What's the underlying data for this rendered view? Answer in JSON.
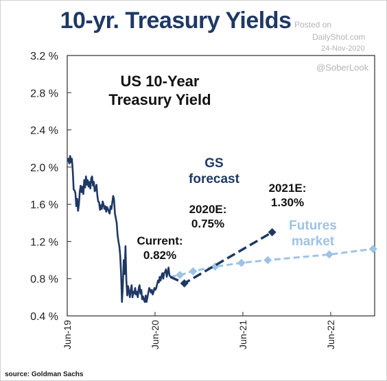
{
  "page": {
    "headline": "10-yr. Treasury Yields",
    "watermark": {
      "posted": "Posted on",
      "site": "DailyShot.com",
      "date": "24-Nov-2020",
      "handle": "@SoberLook"
    },
    "source": "source: Goldman Sachs"
  },
  "chart_data": {
    "type": "line",
    "title": "US 10-Year Treasury Yield",
    "xlabel": "",
    "ylabel": "",
    "ylim": [
      0.4,
      3.2
    ],
    "y_ticks": [
      3.2,
      2.8,
      2.4,
      2.0,
      1.6,
      1.2,
      0.8,
      0.4
    ],
    "y_tick_labels": [
      "3.2 %",
      "2.8 %",
      "2.4 %",
      "2.0 %",
      "1.6 %",
      "1.2 %",
      "0.8 %",
      "0.4 %"
    ],
    "x_ticks": [
      "Jun-19",
      "Jun-20",
      "Jun-21",
      "Jun-22"
    ],
    "xlim_years": [
      2019.417,
      2022.917
    ],
    "grid": false,
    "colors": {
      "history": "#1f3864",
      "gs": "#1f3864",
      "futures": "#9dc3e6",
      "text_dark": "#1f3864"
    },
    "series": [
      {
        "key": "history",
        "points": [
          [
            2019.42,
            2.06
          ],
          [
            2019.43,
            2.09
          ],
          [
            2019.44,
            2.04
          ],
          [
            2019.45,
            2.12
          ],
          [
            2019.46,
            2.05
          ],
          [
            2019.47,
            2.09
          ],
          [
            2019.48,
            1.96
          ],
          [
            2019.49,
            1.76
          ],
          [
            2019.5,
            1.75
          ],
          [
            2019.51,
            1.72
          ],
          [
            2019.52,
            1.58
          ],
          [
            2019.53,
            1.66
          ],
          [
            2019.54,
            1.53
          ],
          [
            2019.55,
            1.6
          ],
          [
            2019.56,
            1.74
          ],
          [
            2019.57,
            1.8
          ],
          [
            2019.58,
            1.73
          ],
          [
            2019.59,
            1.79
          ],
          [
            2019.6,
            1.71
          ],
          [
            2019.61,
            1.86
          ],
          [
            2019.62,
            1.78
          ],
          [
            2019.63,
            1.9
          ],
          [
            2019.64,
            1.81
          ],
          [
            2019.65,
            1.86
          ],
          [
            2019.66,
            1.79
          ],
          [
            2019.67,
            1.84
          ],
          [
            2019.68,
            1.77
          ],
          [
            2019.69,
            1.88
          ],
          [
            2019.7,
            1.9
          ],
          [
            2019.71,
            1.8
          ],
          [
            2019.72,
            1.84
          ],
          [
            2019.73,
            1.74
          ],
          [
            2019.74,
            1.76
          ],
          [
            2019.75,
            1.81
          ],
          [
            2019.76,
            1.69
          ],
          [
            2019.77,
            1.63
          ],
          [
            2019.78,
            1.62
          ],
          [
            2019.79,
            1.54
          ],
          [
            2019.8,
            1.59
          ],
          [
            2019.81,
            1.55
          ],
          [
            2019.82,
            1.63
          ],
          [
            2019.83,
            1.6
          ],
          [
            2019.84,
            1.55
          ],
          [
            2019.85,
            1.58
          ],
          [
            2019.86,
            1.52
          ],
          [
            2019.87,
            1.57
          ],
          [
            2019.88,
            1.55
          ],
          [
            2019.89,
            1.52
          ],
          [
            2019.9,
            1.5
          ],
          [
            2019.91,
            1.58
          ],
          [
            2019.92,
            1.55
          ],
          [
            2019.93,
            1.62
          ],
          [
            2019.94,
            1.69
          ],
          [
            2019.95,
            1.65
          ],
          [
            2019.96,
            1.5
          ],
          [
            2019.97,
            1.45
          ],
          [
            2019.98,
            1.4
          ],
          [
            2019.99,
            1.27
          ],
          [
            2020.0,
            1.2
          ],
          [
            2020.01,
            1.15
          ],
          [
            2020.02,
            1.05
          ],
          [
            2020.03,
            0.85
          ],
          [
            2020.04,
            0.55
          ],
          [
            2020.05,
            0.72
          ],
          [
            2020.06,
            1.0
          ],
          [
            2020.07,
            0.85
          ],
          [
            2020.08,
            1.15
          ],
          [
            2020.09,
            0.78
          ],
          [
            2020.1,
            0.62
          ],
          [
            2020.11,
            0.72
          ],
          [
            2020.12,
            0.66
          ],
          [
            2020.13,
            0.6
          ],
          [
            2020.14,
            0.68
          ],
          [
            2020.15,
            0.73
          ],
          [
            2020.16,
            0.6
          ],
          [
            2020.17,
            0.66
          ],
          [
            2020.18,
            0.64
          ],
          [
            2020.19,
            0.7
          ],
          [
            2020.2,
            0.63
          ],
          [
            2020.21,
            0.66
          ],
          [
            2020.22,
            0.6
          ],
          [
            2020.23,
            0.69
          ],
          [
            2020.24,
            0.73
          ],
          [
            2020.25,
            0.64
          ],
          [
            2020.26,
            0.68
          ],
          [
            2020.27,
            0.58
          ],
          [
            2020.28,
            0.61
          ],
          [
            2020.29,
            0.57
          ],
          [
            2020.3,
            0.55
          ],
          [
            2020.31,
            0.62
          ],
          [
            2020.32,
            0.55
          ],
          [
            2020.33,
            0.6
          ],
          [
            2020.34,
            0.65
          ],
          [
            2020.35,
            0.7
          ],
          [
            2020.36,
            0.68
          ],
          [
            2020.37,
            0.65
          ],
          [
            2020.38,
            0.68
          ],
          [
            2020.39,
            0.63
          ],
          [
            2020.4,
            0.66
          ],
          [
            2020.41,
            0.7
          ],
          [
            2020.42,
            0.68
          ],
          [
            2020.43,
            0.7
          ],
          [
            2020.44,
            0.74
          ],
          [
            2020.45,
            0.78
          ],
          [
            2020.46,
            0.76
          ],
          [
            2020.47,
            0.82
          ],
          [
            2020.48,
            0.78
          ],
          [
            2020.49,
            0.83
          ],
          [
            2020.5,
            0.86
          ],
          [
            2020.51,
            0.8
          ],
          [
            2020.52,
            0.86
          ],
          [
            2020.53,
            0.87
          ],
          [
            2020.54,
            0.9
          ],
          [
            2020.55,
            0.82
          ],
          [
            2020.56,
            0.87
          ],
          [
            2020.57,
            0.92
          ],
          [
            2020.58,
            0.84
          ],
          [
            2020.59,
            0.82
          ]
        ]
      },
      {
        "key": "gs",
        "name": "GS forecast",
        "markers": "square",
        "points": [
          [
            2020.59,
            0.82
          ],
          [
            2020.75,
            0.75
          ],
          [
            2021.75,
            1.3
          ]
        ]
      },
      {
        "key": "futures",
        "name": "Futures market",
        "markers": "diamond",
        "points": [
          [
            2020.59,
            0.82
          ],
          [
            2020.7,
            0.84
          ],
          [
            2020.85,
            0.88
          ],
          [
            2021.1,
            0.93
          ],
          [
            2021.4,
            0.97
          ],
          [
            2021.7,
            1.0
          ],
          [
            2022.4,
            1.06
          ],
          [
            2022.9,
            1.12
          ]
        ]
      }
    ],
    "annotations": {
      "current": [
        "Current:",
        "0.82%"
      ],
      "e2020": [
        "2020E:",
        "0.75%"
      ],
      "e2021": [
        "2021E:",
        "1.30%"
      ],
      "gs": [
        "GS",
        "forecast"
      ],
      "futures": [
        "Futures",
        "market"
      ]
    }
  }
}
